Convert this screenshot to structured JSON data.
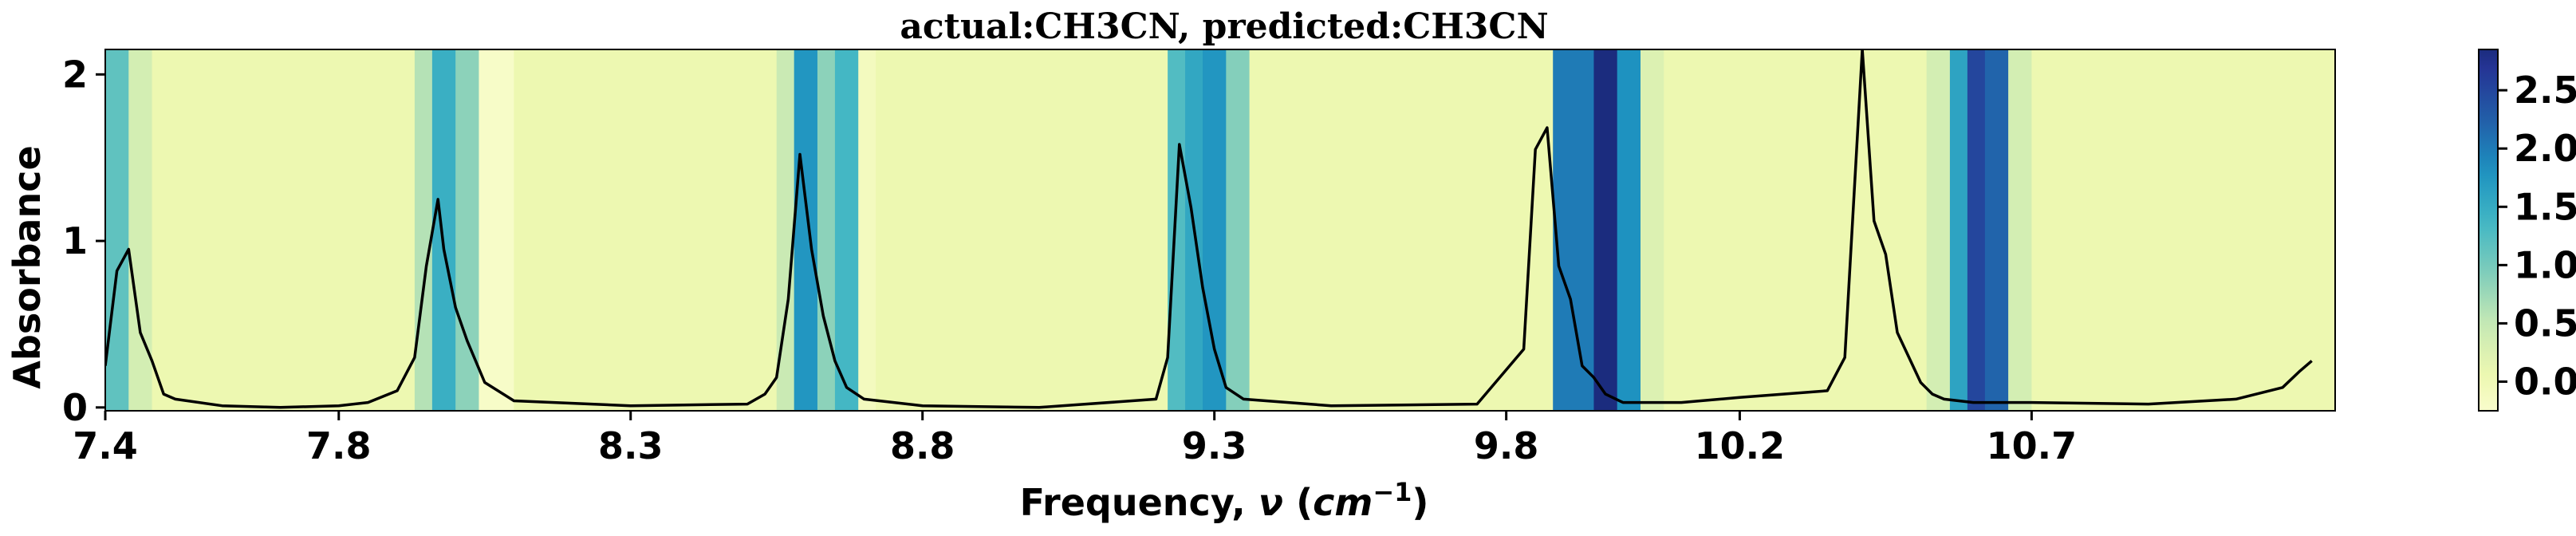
{
  "chart_data": {
    "type": "line",
    "title": "actual:CH3CN, predicted:CH3CN",
    "xlabel": "Frequency, ν (cm⁻¹)",
    "ylabel": "Absorbance",
    "xlim": [
      7.4,
      11.22
    ],
    "ylim": [
      -0.02,
      2.15
    ],
    "x_ticks": [
      7.4,
      7.8,
      8.3,
      8.8,
      9.3,
      9.8,
      10.2,
      10.7
    ],
    "x_tick_labels": [
      "7.4",
      "7.8",
      "8.3",
      "8.8",
      "9.3",
      "9.8",
      "10.2",
      "10.7"
    ],
    "y_ticks": [
      0,
      1,
      2
    ],
    "y_tick_labels": [
      "0",
      "1",
      "2"
    ],
    "grid": false,
    "legend": "none",
    "line_color": "#000000",
    "series": [
      {
        "x": [
          7.4,
          7.42,
          7.44,
          7.46,
          7.48,
          7.5,
          7.52,
          7.6,
          7.7,
          7.8,
          7.85,
          7.9,
          7.93,
          7.95,
          7.97,
          7.98,
          8.0,
          8.02,
          8.05,
          8.1,
          8.3,
          8.5,
          8.53,
          8.55,
          8.57,
          8.59,
          8.61,
          8.63,
          8.65,
          8.67,
          8.7,
          8.8,
          9.0,
          9.2,
          9.22,
          9.24,
          9.26,
          9.28,
          9.3,
          9.32,
          9.35,
          9.5,
          9.75,
          9.83,
          9.85,
          9.87,
          9.89,
          9.91,
          9.93,
          9.95,
          9.97,
          10.0,
          10.1,
          10.2,
          10.35,
          10.38,
          10.41,
          10.43,
          10.45,
          10.47,
          10.49,
          10.51,
          10.53,
          10.55,
          10.6,
          10.7,
          10.9,
          11.05,
          11.13,
          11.16,
          11.18
        ],
        "y": [
          0.25,
          0.82,
          0.95,
          0.45,
          0.28,
          0.08,
          0.05,
          0.01,
          0.0,
          0.01,
          0.03,
          0.1,
          0.3,
          0.85,
          1.25,
          0.95,
          0.6,
          0.4,
          0.15,
          0.04,
          0.01,
          0.02,
          0.08,
          0.18,
          0.65,
          1.52,
          0.95,
          0.55,
          0.28,
          0.12,
          0.05,
          0.01,
          0.0,
          0.05,
          0.3,
          1.58,
          1.2,
          0.72,
          0.35,
          0.12,
          0.05,
          0.01,
          0.02,
          0.35,
          1.55,
          1.68,
          0.85,
          0.65,
          0.25,
          0.18,
          0.08,
          0.03,
          0.03,
          0.06,
          0.1,
          0.3,
          2.15,
          1.12,
          0.92,
          0.45,
          0.3,
          0.15,
          0.08,
          0.05,
          0.03,
          0.03,
          0.02,
          0.05,
          0.12,
          0.22,
          0.28
        ]
      }
    ],
    "heatmap_background": {
      "description_type": "vertical bands colored by attribution value",
      "bands": [
        {
          "x0": 7.4,
          "x1": 7.44,
          "value": 1.15
        },
        {
          "x0": 7.44,
          "x1": 7.48,
          "value": 0.35
        },
        {
          "x0": 7.48,
          "x1": 7.93,
          "value": 0.05
        },
        {
          "x0": 7.93,
          "x1": 7.96,
          "value": 0.6
        },
        {
          "x0": 7.96,
          "x1": 8.0,
          "value": 1.45
        },
        {
          "x0": 8.0,
          "x1": 8.04,
          "value": 0.85
        },
        {
          "x0": 8.04,
          "x1": 8.1,
          "value": -0.2
        },
        {
          "x0": 8.1,
          "x1": 8.55,
          "value": 0.05
        },
        {
          "x0": 8.55,
          "x1": 8.58,
          "value": 0.45
        },
        {
          "x0": 8.58,
          "x1": 8.62,
          "value": 1.75
        },
        {
          "x0": 8.62,
          "x1": 8.65,
          "value": 0.85
        },
        {
          "x0": 8.65,
          "x1": 8.69,
          "value": 1.35
        },
        {
          "x0": 8.69,
          "x1": 8.72,
          "value": -0.1
        },
        {
          "x0": 8.72,
          "x1": 9.22,
          "value": 0.05
        },
        {
          "x0": 9.22,
          "x1": 9.25,
          "value": 1.25
        },
        {
          "x0": 9.25,
          "x1": 9.28,
          "value": 1.55
        },
        {
          "x0": 9.28,
          "x1": 9.32,
          "value": 1.75
        },
        {
          "x0": 9.32,
          "x1": 9.36,
          "value": 0.9
        },
        {
          "x0": 9.36,
          "x1": 9.88,
          "value": 0.05
        },
        {
          "x0": 9.88,
          "x1": 9.95,
          "value": 2.0
        },
        {
          "x0": 9.95,
          "x1": 9.99,
          "value": 2.85
        },
        {
          "x0": 9.99,
          "x1": 10.03,
          "value": 1.8
        },
        {
          "x0": 10.03,
          "x1": 10.07,
          "value": 0.25
        },
        {
          "x0": 10.07,
          "x1": 10.52,
          "value": 0.05
        },
        {
          "x0": 10.52,
          "x1": 10.56,
          "value": 0.35
        },
        {
          "x0": 10.56,
          "x1": 10.59,
          "value": 1.6
        },
        {
          "x0": 10.59,
          "x1": 10.62,
          "value": 2.5
        },
        {
          "x0": 10.62,
          "x1": 10.66,
          "value": 2.2
        },
        {
          "x0": 10.66,
          "x1": 10.7,
          "value": 0.35
        },
        {
          "x0": 10.7,
          "x1": 11.22,
          "value": 0.05
        }
      ]
    },
    "colorbar": {
      "colormap": "YlGnBu",
      "range": [
        -0.25,
        2.85
      ],
      "ticks": [
        0.0,
        0.5,
        1.0,
        1.5,
        2.0,
        2.5
      ],
      "tick_labels": [
        "0.0",
        "0.5",
        "1.0",
        "1.5",
        "2.0",
        "2.5"
      ]
    }
  }
}
